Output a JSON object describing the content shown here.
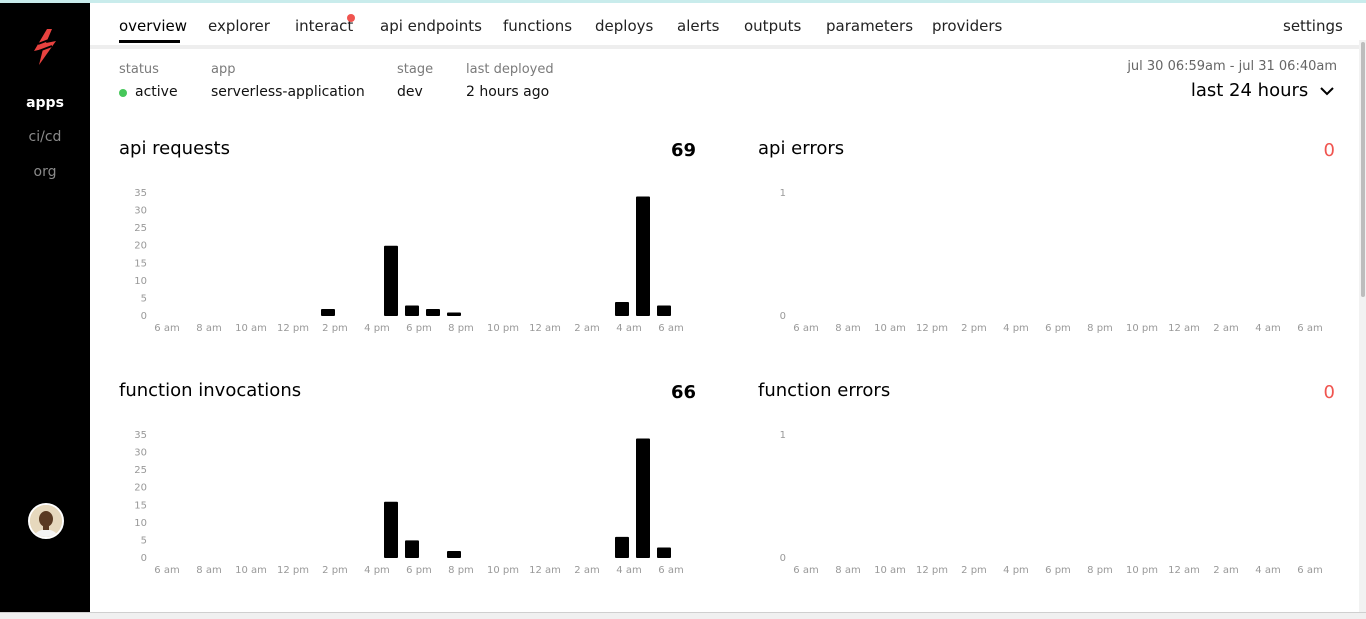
{
  "sidebar": {
    "logo_icon": "bolt-icon",
    "items": [
      {
        "label": "apps",
        "active": true
      },
      {
        "label": "ci/cd",
        "active": false
      },
      {
        "label": "org",
        "active": false
      }
    ],
    "avatar_icon": "user-avatar"
  },
  "tabs": [
    {
      "label": "overview",
      "active": true
    },
    {
      "label": "explorer"
    },
    {
      "label": "interact",
      "notification": true
    },
    {
      "label": "api endpoints"
    },
    {
      "label": "functions"
    },
    {
      "label": "deploys"
    },
    {
      "label": "alerts"
    },
    {
      "label": "outputs"
    },
    {
      "label": "parameters"
    },
    {
      "label": "providers"
    },
    {
      "label": "settings"
    }
  ],
  "meta": {
    "status": {
      "label": "status",
      "value": "active"
    },
    "app": {
      "label": "app",
      "value": "serverless-application"
    },
    "stage": {
      "label": "stage",
      "value": "dev"
    },
    "last_deployed": {
      "label": "last deployed",
      "value": "2 hours ago"
    }
  },
  "time_range": {
    "range_text": "jul 30 06:59am - jul 31 06:40am",
    "selected": "last 24 hours"
  },
  "colors": {
    "accent_red": "#f0544f",
    "status_green": "#46c75a",
    "bar": "#000000"
  },
  "panels": {
    "api_requests": {
      "title": "api requests",
      "total": "69"
    },
    "api_errors": {
      "title": "api errors",
      "total": "0"
    },
    "function_invocations": {
      "title": "function invocations",
      "total": "66"
    },
    "function_errors": {
      "title": "function errors",
      "total": "0"
    }
  },
  "chart_data": [
    {
      "type": "bar",
      "title": "api requests",
      "categories": [
        "6 am",
        "8 am",
        "10 am",
        "12 pm",
        "2 pm",
        "4 pm",
        "6 pm",
        "8 pm",
        "10 pm",
        "12 am",
        "2 am",
        "4 am",
        "6 am"
      ],
      "y_ticks": [
        0,
        5,
        10,
        15,
        20,
        25,
        30,
        35
      ],
      "ylim": [
        0,
        35
      ],
      "hourly_values": [
        0,
        0,
        0,
        0,
        0,
        0,
        0,
        0,
        2,
        0,
        0,
        20,
        3,
        2,
        1,
        0,
        0,
        0,
        0,
        0,
        0,
        0,
        4,
        34,
        3
      ]
    },
    {
      "type": "bar",
      "title": "api errors",
      "categories": [
        "6 am",
        "8 am",
        "10 am",
        "12 pm",
        "2 pm",
        "4 pm",
        "6 pm",
        "8 pm",
        "10 pm",
        "12 am",
        "2 am",
        "4 am",
        "6 am"
      ],
      "y_ticks": [
        0,
        1
      ],
      "ylim": [
        0,
        1
      ],
      "hourly_values": [
        0,
        0,
        0,
        0,
        0,
        0,
        0,
        0,
        0,
        0,
        0,
        0,
        0,
        0,
        0,
        0,
        0,
        0,
        0,
        0,
        0,
        0,
        0,
        0,
        0
      ]
    },
    {
      "type": "bar",
      "title": "function invocations",
      "categories": [
        "6 am",
        "8 am",
        "10 am",
        "12 pm",
        "2 pm",
        "4 pm",
        "6 pm",
        "8 pm",
        "10 pm",
        "12 am",
        "2 am",
        "4 am",
        "6 am"
      ],
      "y_ticks": [
        0,
        5,
        10,
        15,
        20,
        25,
        30,
        35
      ],
      "ylim": [
        0,
        35
      ],
      "hourly_values": [
        0,
        0,
        0,
        0,
        0,
        0,
        0,
        0,
        0,
        0,
        0,
        16,
        5,
        0,
        2,
        0,
        0,
        0,
        0,
        0,
        0,
        0,
        6,
        34,
        3
      ]
    },
    {
      "type": "bar",
      "title": "function errors",
      "categories": [
        "6 am",
        "8 am",
        "10 am",
        "12 pm",
        "2 pm",
        "4 pm",
        "6 pm",
        "8 pm",
        "10 pm",
        "12 am",
        "2 am",
        "4 am",
        "6 am"
      ],
      "y_ticks": [
        0,
        1
      ],
      "ylim": [
        0,
        1
      ],
      "hourly_values": [
        0,
        0,
        0,
        0,
        0,
        0,
        0,
        0,
        0,
        0,
        0,
        0,
        0,
        0,
        0,
        0,
        0,
        0,
        0,
        0,
        0,
        0,
        0,
        0,
        0
      ]
    }
  ]
}
